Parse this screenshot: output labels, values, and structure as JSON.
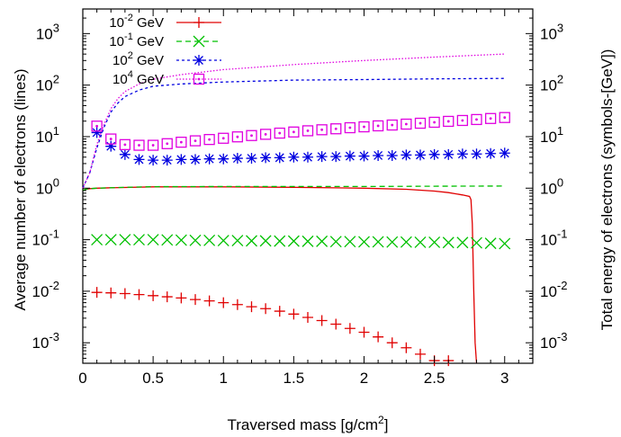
{
  "chart_data": {
    "type": "line",
    "xlabel": "Traversed mass [g/cm",
    "xlabel_sup": "2",
    "xlabel_end": "]",
    "ylabel_left": "Average number of electrons (lines)",
    "ylabel_right": "Total energy of electrons (symbols-[GeV])",
    "xlim": [
      0,
      3.2
    ],
    "ylim": [
      0.0004,
      3000
    ],
    "yscale": "log",
    "x_ticks": [
      "0",
      "0.5",
      "1",
      "1.5",
      "2",
      "2.5",
      "3"
    ],
    "y_ticks": [
      {
        "base": "10",
        "exp": "-3"
      },
      {
        "base": "10",
        "exp": "-2"
      },
      {
        "base": "10",
        "exp": "-1"
      },
      {
        "base": "10",
        "exp": "0"
      },
      {
        "base": "10",
        "exp": "1"
      },
      {
        "base": "10",
        "exp": "2"
      },
      {
        "base": "10",
        "exp": "3"
      }
    ],
    "legend_position": "top-left",
    "series": [
      {
        "name": "10^-2 GeV",
        "name_base": "10",
        "name_exp": "-2",
        "name_unit": " GeV",
        "color": "#e00000",
        "line_style": "solid",
        "marker": "plus",
        "line": {
          "x": [
            0,
            0.02,
            0.05,
            0.1,
            0.2,
            0.5,
            1.0,
            1.5,
            2.0,
            2.3,
            2.5,
            2.6,
            2.7,
            2.75,
            2.76,
            2.77,
            2.78,
            2.79,
            2.8
          ],
          "y": [
            0.9,
            0.95,
            0.98,
            1.0,
            1.02,
            1.06,
            1.06,
            1.04,
            1.0,
            0.95,
            0.88,
            0.82,
            0.74,
            0.69,
            0.6,
            0.2,
            0.01,
            0.001,
            0.0004
          ]
        },
        "markers": {
          "x": [
            0.1,
            0.2,
            0.3,
            0.4,
            0.5,
            0.6,
            0.7,
            0.8,
            0.9,
            1.0,
            1.1,
            1.2,
            1.3,
            1.4,
            1.5,
            1.6,
            1.7,
            1.8,
            1.9,
            2.0,
            2.1,
            2.2,
            2.3,
            2.4,
            2.5,
            2.6
          ],
          "y": [
            0.0095,
            0.0093,
            0.009,
            0.0086,
            0.0082,
            0.0078,
            0.0074,
            0.0069,
            0.0065,
            0.006,
            0.0055,
            0.005,
            0.0046,
            0.0041,
            0.0036,
            0.0031,
            0.0027,
            0.0023,
            0.0019,
            0.0016,
            0.0013,
            0.001,
            0.0008,
            0.0006,
            0.00045,
            0.00045
          ]
        }
      },
      {
        "name": "10^-1 GeV",
        "name_base": "10",
        "name_exp": "-1",
        "name_unit": " GeV",
        "color": "#00c000",
        "line_style": "dashed",
        "marker": "cross",
        "line": {
          "x": [
            0,
            0.02,
            0.05,
            0.1,
            0.3,
            0.5,
            1.0,
            1.5,
            2.0,
            2.5,
            3.0
          ],
          "y": [
            0.9,
            0.95,
            0.98,
            1.0,
            1.04,
            1.07,
            1.08,
            1.08,
            1.08,
            1.09,
            1.1
          ]
        },
        "markers": {
          "x": [
            0.1,
            0.2,
            0.3,
            0.4,
            0.5,
            0.6,
            0.7,
            0.8,
            0.9,
            1.0,
            1.1,
            1.2,
            1.3,
            1.4,
            1.5,
            1.6,
            1.7,
            1.8,
            1.9,
            2.0,
            2.1,
            2.2,
            2.3,
            2.4,
            2.5,
            2.6,
            2.7,
            2.8,
            2.9,
            3.0
          ],
          "y": [
            0.1,
            0.1,
            0.1,
            0.1,
            0.1,
            0.099,
            0.098,
            0.097,
            0.097,
            0.096,
            0.096,
            0.095,
            0.095,
            0.094,
            0.094,
            0.093,
            0.093,
            0.092,
            0.092,
            0.091,
            0.091,
            0.09,
            0.09,
            0.089,
            0.089,
            0.088,
            0.088,
            0.087,
            0.085,
            0.084
          ]
        }
      },
      {
        "name": "10^2 GeV",
        "name_base": "10",
        "name_exp": "2",
        "name_unit": " GeV",
        "color": "#0000e0",
        "line_style": "dotted",
        "marker": "star",
        "line": {
          "x": [
            0,
            0.05,
            0.1,
            0.15,
            0.2,
            0.25,
            0.3,
            0.4,
            0.5,
            0.7,
            1.0,
            1.5,
            2.0,
            2.5,
            3.0
          ],
          "y": [
            1.0,
            2.0,
            6.0,
            15.0,
            30.0,
            45.0,
            60.0,
            80.0,
            95.0,
            105.0,
            115.0,
            125.0,
            128.0,
            132.0,
            135.0
          ]
        },
        "markers": {
          "x": [
            0.1,
            0.2,
            0.3,
            0.4,
            0.5,
            0.6,
            0.7,
            0.8,
            0.9,
            1.0,
            1.1,
            1.2,
            1.3,
            1.4,
            1.5,
            1.6,
            1.7,
            1.8,
            1.9,
            2.0,
            2.1,
            2.2,
            2.3,
            2.4,
            2.5,
            2.6,
            2.7,
            2.8,
            2.9,
            3.0
          ],
          "y": [
            12.0,
            6.5,
            4.5,
            3.6,
            3.5,
            3.5,
            3.6,
            3.6,
            3.7,
            3.7,
            3.8,
            3.8,
            3.9,
            3.9,
            4.0,
            4.0,
            4.1,
            4.1,
            4.2,
            4.2,
            4.3,
            4.3,
            4.4,
            4.4,
            4.5,
            4.5,
            4.6,
            4.6,
            4.7,
            4.8
          ]
        }
      },
      {
        "name": "10^4 GeV",
        "name_base": "10",
        "name_exp": "4",
        "name_unit": " GeV",
        "color": "#e000e0",
        "line_style": "fine-dotted",
        "marker": "dotted-square",
        "line": {
          "x": [
            0,
            0.05,
            0.1,
            0.15,
            0.2,
            0.25,
            0.3,
            0.4,
            0.5,
            0.7,
            1.0,
            1.5,
            2.0,
            2.5,
            3.0
          ],
          "y": [
            1.0,
            2.0,
            7.0,
            17.0,
            35.0,
            55.0,
            75.0,
            105.0,
            130.0,
            160.0,
            200.0,
            250.0,
            300.0,
            350.0,
            400.0
          ]
        },
        "markers": {
          "x": [
            0.1,
            0.2,
            0.3,
            0.4,
            0.5,
            0.6,
            0.7,
            0.8,
            0.9,
            1.0,
            1.1,
            1.2,
            1.3,
            1.4,
            1.5,
            1.6,
            1.7,
            1.8,
            1.9,
            2.0,
            2.1,
            2.2,
            2.3,
            2.4,
            2.5,
            2.6,
            2.7,
            2.8,
            2.9,
            3.0
          ],
          "y": [
            16.0,
            9.0,
            7.0,
            6.8,
            6.8,
            7.3,
            7.8,
            8.3,
            8.8,
            9.3,
            9.9,
            10.5,
            11.1,
            11.7,
            12.3,
            13.0,
            13.6,
            14.2,
            14.9,
            15.5,
            16.2,
            16.8,
            17.5,
            18.2,
            19.0,
            19.8,
            20.6,
            21.5,
            22.5,
            23.5
          ]
        }
      }
    ]
  }
}
